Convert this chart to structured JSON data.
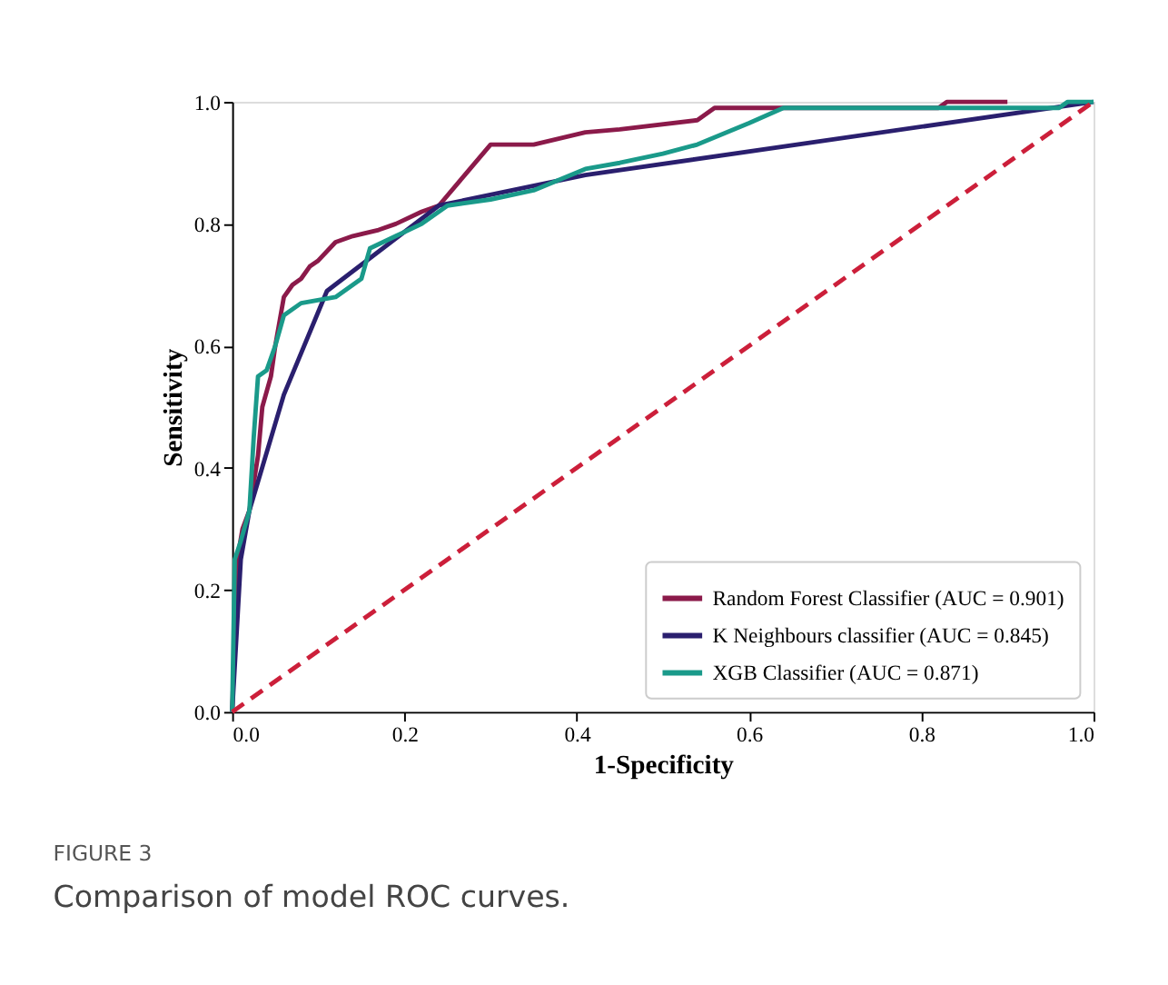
{
  "chart_data": {
    "type": "line",
    "xlabel": "1-Specificity",
    "ylabel": "Sensitivity",
    "xlim": [
      0,
      1
    ],
    "ylim": [
      0,
      1
    ],
    "xticks": [
      {
        "value": 0,
        "label": "0.0"
      },
      {
        "value": 0.2,
        "label": "0.2"
      },
      {
        "value": 0.4,
        "label": "0.4"
      },
      {
        "value": 0.6,
        "label": "0.6"
      },
      {
        "value": 0.8,
        "label": "0.8"
      },
      {
        "value": 1,
        "label": "1.0"
      }
    ],
    "yticks": [
      {
        "value": 0,
        "label": "0.0"
      },
      {
        "value": 0.2,
        "label": "0.2"
      },
      {
        "value": 0.4,
        "label": "0.4"
      },
      {
        "value": 0.6,
        "label": "0.6"
      },
      {
        "value": 0.8,
        "label": "0.8"
      },
      {
        "value": 1,
        "label": "1.0"
      }
    ],
    "grid": false,
    "legend": "bottom right",
    "marker": "none",
    "annotations": [
      "FIGURE 3",
      "Comparison of model ROC curves."
    ],
    "series": [
      {
        "name": "Random Forest Classifier (AUC = 0.901)",
        "color": "#8b1a4a",
        "type": "line",
        "line_style": "solid",
        "x": [
          0,
          0.006,
          0.012,
          0.02,
          0.03,
          0.035,
          0.045,
          0.05,
          0.06,
          0.07,
          0.08,
          0.09,
          0.1,
          0.12,
          0.14,
          0.17,
          0.19,
          0.22,
          0.24,
          0.27,
          0.3,
          0.35,
          0.41,
          0.45,
          0.54,
          0.56,
          0.82,
          0.83,
          0.9
        ],
        "values": [
          0,
          0.25,
          0.3,
          0.33,
          0.42,
          0.5,
          0.55,
          0.6,
          0.68,
          0.7,
          0.71,
          0.73,
          0.74,
          0.77,
          0.78,
          0.79,
          0.8,
          0.82,
          0.83,
          0.88,
          0.93,
          0.93,
          0.95,
          0.955,
          0.97,
          0.99,
          0.99,
          1,
          1
        ]
      },
      {
        "name": "K Neighbours classifier (AUC = 0.845)",
        "color": "#2a1f6e",
        "type": "line",
        "line_style": "solid",
        "x": [
          0,
          0.01,
          0.02,
          0.06,
          0.11,
          0.24,
          0.41,
          1
        ],
        "values": [
          0,
          0.25,
          0.33,
          0.52,
          0.69,
          0.83,
          0.88,
          1
        ]
      },
      {
        "name": "XGB Classifier (AUC = 0.871)",
        "color": "#1a9a8a",
        "type": "line",
        "line_style": "solid",
        "x": [
          0,
          0.003,
          0.01,
          0.02,
          0.025,
          0.03,
          0.04,
          0.05,
          0.06,
          0.08,
          0.12,
          0.15,
          0.16,
          0.19,
          0.22,
          0.25,
          0.3,
          0.35,
          0.41,
          0.45,
          0.5,
          0.54,
          0.6,
          0.64,
          0.96,
          0.97,
          1
        ],
        "values": [
          0,
          0.25,
          0.28,
          0.33,
          0.45,
          0.55,
          0.56,
          0.6,
          0.65,
          0.67,
          0.68,
          0.71,
          0.76,
          0.78,
          0.8,
          0.83,
          0.84,
          0.855,
          0.89,
          0.9,
          0.915,
          0.93,
          0.965,
          0.99,
          0.99,
          1,
          1
        ]
      },
      {
        "color": "#cc1f3a",
        "type": "line",
        "line_style": "dashed",
        "x": [
          0,
          1
        ],
        "values": [
          0,
          1
        ]
      }
    ]
  }
}
